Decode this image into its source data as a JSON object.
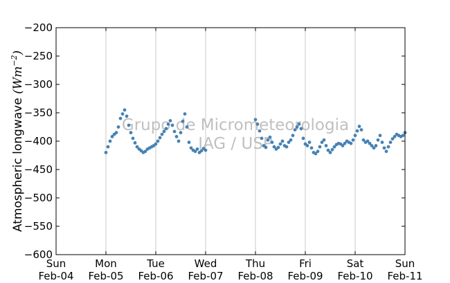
{
  "chart_data": {
    "type": "scatter",
    "ylabel": "Atmospheric longwave",
    "ylabel_unit_base": "Wm",
    "ylabel_unit_exp": "−2",
    "ylim": [
      -600,
      -200
    ],
    "yticks": [
      -200,
      -250,
      -300,
      -350,
      -400,
      -450,
      -500,
      -550,
      -600
    ],
    "ytick_labels": [
      "−200",
      "−250",
      "−300",
      "−350",
      "−400",
      "−450",
      "−500",
      "−550",
      "−600"
    ],
    "xlim": [
      "2018-02-04",
      "2018-02-11"
    ],
    "xticks": [
      {
        "date": "2018-02-04",
        "day": "Sun",
        "label": "Feb-04"
      },
      {
        "date": "2018-02-05",
        "day": "Mon",
        "label": "Feb-05"
      },
      {
        "date": "2018-02-06",
        "day": "Tue",
        "label": "Feb-06"
      },
      {
        "date": "2018-02-07",
        "day": "Wed",
        "label": "Feb-07"
      },
      {
        "date": "2018-02-08",
        "day": "Thu",
        "label": "Feb-08"
      },
      {
        "date": "2018-02-09",
        "day": "Fri",
        "label": "Feb-09"
      },
      {
        "date": "2018-02-10",
        "day": "Sat",
        "label": "Feb-10"
      },
      {
        "date": "2018-02-11",
        "day": "Sun",
        "label": "Feb-11"
      }
    ],
    "grid": "vertical",
    "marker_color": "#4682b4",
    "watermark": [
      "Grupo de Micrometeorologia",
      "IAG / USP"
    ],
    "series": [
      {
        "points": [
          [
            "2018-02-05 00:00",
            -420
          ],
          [
            "2018-02-05 01:00",
            -410
          ],
          [
            "2018-02-05 02:00",
            -400
          ],
          [
            "2018-02-05 03:00",
            -392
          ],
          [
            "2018-02-05 04:00",
            -388
          ],
          [
            "2018-02-05 05:00",
            -385
          ],
          [
            "2018-02-05 06:00",
            -375
          ],
          [
            "2018-02-05 07:00",
            -360
          ],
          [
            "2018-02-05 08:00",
            -352
          ],
          [
            "2018-02-05 09:00",
            -345
          ],
          [
            "2018-02-05 10:00",
            -356
          ],
          [
            "2018-02-05 11:00",
            -372
          ],
          [
            "2018-02-05 12:00",
            -385
          ],
          [
            "2018-02-05 13:00",
            -395
          ],
          [
            "2018-02-05 14:00",
            -403
          ],
          [
            "2018-02-05 15:00",
            -410
          ],
          [
            "2018-02-05 16:00",
            -414
          ],
          [
            "2018-02-05 17:00",
            -417
          ],
          [
            "2018-02-05 18:00",
            -420
          ],
          [
            "2018-02-05 19:00",
            -418
          ],
          [
            "2018-02-05 20:00",
            -414
          ],
          [
            "2018-02-05 21:00",
            -412
          ],
          [
            "2018-02-05 22:00",
            -410
          ],
          [
            "2018-02-05 23:00",
            -408
          ],
          [
            "2018-02-06 00:00",
            -405
          ],
          [
            "2018-02-06 01:00",
            -400
          ],
          [
            "2018-02-06 02:00",
            -394
          ],
          [
            "2018-02-06 03:00",
            -388
          ],
          [
            "2018-02-06 04:00",
            -383
          ],
          [
            "2018-02-06 05:00",
            -378
          ],
          [
            "2018-02-06 06:00",
            -370
          ],
          [
            "2018-02-06 07:00",
            -364
          ],
          [
            "2018-02-06 08:00",
            -372
          ],
          [
            "2018-02-06 09:00",
            -383
          ],
          [
            "2018-02-06 10:00",
            -392
          ],
          [
            "2018-02-06 11:00",
            -400
          ],
          [
            "2018-02-06 12:00",
            -385
          ],
          [
            "2018-02-06 13:00",
            -365
          ],
          [
            "2018-02-06 14:00",
            -352
          ],
          [
            "2018-02-06 15:00",
            -375
          ],
          [
            "2018-02-06 16:00",
            -402
          ],
          [
            "2018-02-06 17:00",
            -412
          ],
          [
            "2018-02-06 18:00",
            -416
          ],
          [
            "2018-02-06 19:00",
            -418
          ],
          [
            "2018-02-06 20:00",
            -414
          ],
          [
            "2018-02-06 21:00",
            -420
          ],
          [
            "2018-02-06 22:00",
            -417
          ],
          [
            "2018-02-06 23:00",
            -413
          ],
          [
            "2018-02-07 00:00",
            -416
          ],
          [
            "2018-02-08 00:00",
            -362
          ],
          [
            "2018-02-08 01:00",
            -370
          ],
          [
            "2018-02-08 02:00",
            -382
          ],
          [
            "2018-02-08 03:00",
            -395
          ],
          [
            "2018-02-08 04:00",
            -408
          ],
          [
            "2018-02-08 05:00",
            -411
          ],
          [
            "2018-02-08 06:00",
            -398
          ],
          [
            "2018-02-08 07:00",
            -393
          ],
          [
            "2018-02-08 08:00",
            -402
          ],
          [
            "2018-02-08 09:00",
            -410
          ],
          [
            "2018-02-08 10:00",
            -414
          ],
          [
            "2018-02-08 11:00",
            -411
          ],
          [
            "2018-02-08 12:00",
            -405
          ],
          [
            "2018-02-08 13:00",
            -400
          ],
          [
            "2018-02-08 14:00",
            -408
          ],
          [
            "2018-02-08 15:00",
            -410
          ],
          [
            "2018-02-08 16:00",
            -402
          ],
          [
            "2018-02-08 17:00",
            -398
          ],
          [
            "2018-02-08 18:00",
            -390
          ],
          [
            "2018-02-08 19:00",
            -380
          ],
          [
            "2018-02-08 20:00",
            -375
          ],
          [
            "2018-02-08 21:00",
            -370
          ],
          [
            "2018-02-08 22:00",
            -378
          ],
          [
            "2018-02-08 23:00",
            -395
          ],
          [
            "2018-02-09 00:00",
            -405
          ],
          [
            "2018-02-09 01:00",
            -408
          ],
          [
            "2018-02-09 02:00",
            -402
          ],
          [
            "2018-02-09 03:00",
            -412
          ],
          [
            "2018-02-09 04:00",
            -420
          ],
          [
            "2018-02-09 05:00",
            -422
          ],
          [
            "2018-02-09 06:00",
            -418
          ],
          [
            "2018-02-09 07:00",
            -410
          ],
          [
            "2018-02-09 08:00",
            -402
          ],
          [
            "2018-02-09 09:00",
            -398
          ],
          [
            "2018-02-09 10:00",
            -408
          ],
          [
            "2018-02-09 11:00",
            -416
          ],
          [
            "2018-02-09 12:00",
            -420
          ],
          [
            "2018-02-09 13:00",
            -415
          ],
          [
            "2018-02-09 14:00",
            -410
          ],
          [
            "2018-02-09 15:00",
            -406
          ],
          [
            "2018-02-09 16:00",
            -404
          ],
          [
            "2018-02-09 17:00",
            -405
          ],
          [
            "2018-02-09 18:00",
            -408
          ],
          [
            "2018-02-09 19:00",
            -404
          ],
          [
            "2018-02-09 20:00",
            -400
          ],
          [
            "2018-02-09 21:00",
            -402
          ],
          [
            "2018-02-09 22:00",
            -404
          ],
          [
            "2018-02-09 23:00",
            -398
          ],
          [
            "2018-02-10 00:00",
            -390
          ],
          [
            "2018-02-10 01:00",
            -382
          ],
          [
            "2018-02-10 02:00",
            -374
          ],
          [
            "2018-02-10 03:00",
            -380
          ],
          [
            "2018-02-10 04:00",
            -398
          ],
          [
            "2018-02-10 05:00",
            -402
          ],
          [
            "2018-02-10 06:00",
            -400
          ],
          [
            "2018-02-10 07:00",
            -404
          ],
          [
            "2018-02-10 08:00",
            -408
          ],
          [
            "2018-02-10 09:00",
            -412
          ],
          [
            "2018-02-10 10:00",
            -408
          ],
          [
            "2018-02-10 11:00",
            -398
          ],
          [
            "2018-02-10 12:00",
            -390
          ],
          [
            "2018-02-10 13:00",
            -402
          ],
          [
            "2018-02-10 14:00",
            -412
          ],
          [
            "2018-02-10 15:00",
            -418
          ],
          [
            "2018-02-10 16:00",
            -410
          ],
          [
            "2018-02-10 17:00",
            -402
          ],
          [
            "2018-02-10 18:00",
            -396
          ],
          [
            "2018-02-10 19:00",
            -392
          ],
          [
            "2018-02-10 20:00",
            -388
          ],
          [
            "2018-02-10 21:00",
            -390
          ],
          [
            "2018-02-10 22:00",
            -392
          ],
          [
            "2018-02-10 23:00",
            -390
          ],
          [
            "2018-02-11 00:00",
            -385
          ]
        ]
      }
    ]
  }
}
